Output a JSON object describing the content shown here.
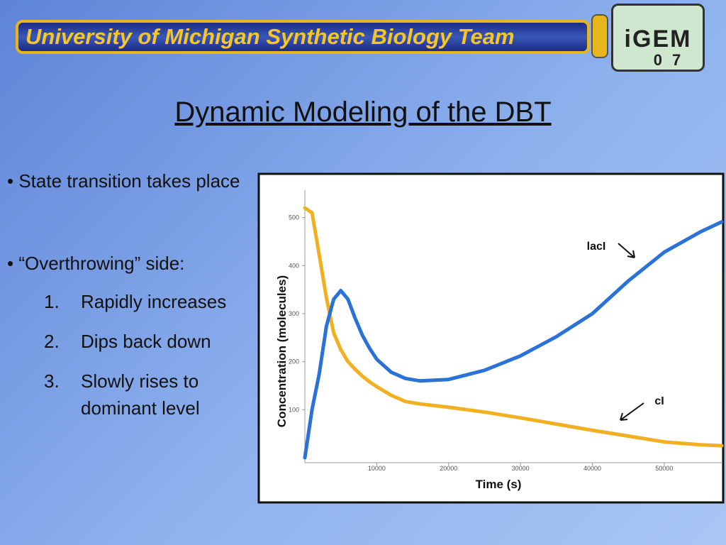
{
  "header": {
    "banner": "University of Michigan Synthetic Biology Team",
    "logo_text": "iGEM",
    "logo_year": "07"
  },
  "title": "Dynamic Modeling of the DBT",
  "bullets": [
    "• State transition takes place",
    "• “Overthrowing” side:"
  ],
  "steps": [
    {
      "number": "1.",
      "text": "Rapidly increases"
    },
    {
      "number": "2.",
      "text": "Dips back down"
    },
    {
      "number": "3.",
      "text": "Slowly rises to dominant level"
    }
  ],
  "chart_data": {
    "type": "line",
    "x_label": "Time (s)",
    "y_label": "Concentration (molecules)",
    "x": [
      0,
      1000,
      2000,
      3000,
      4000,
      5000,
      6000,
      7000,
      8000,
      9000,
      10000,
      12000,
      14000,
      16000,
      20000,
      25000,
      30000,
      35000,
      40000,
      45000,
      50000,
      55000,
      58000
    ],
    "series": [
      {
        "name": "lacI",
        "color": "#2a72d8",
        "values": [
          0,
          100,
          175,
          274,
          330,
          348,
          330,
          290,
          255,
          228,
          205,
          178,
          165,
          160,
          163,
          182,
          212,
          252,
          300,
          368,
          428,
          470,
          491
        ]
      },
      {
        "name": "cI",
        "color": "#f0b020",
        "values": [
          520,
          510,
          422,
          333,
          260,
          225,
          200,
          184,
          170,
          158,
          148,
          130,
          117,
          112,
          105,
          95,
          83,
          70,
          57,
          45,
          33,
          27,
          25
        ]
      }
    ],
    "xlim": [
      0,
      58000
    ],
    "ylim": [
      0,
      560
    ],
    "xticks": [
      10000,
      20000,
      30000,
      40000,
      50000
    ],
    "yticks": [
      100,
      200,
      300,
      400,
      500
    ]
  }
}
